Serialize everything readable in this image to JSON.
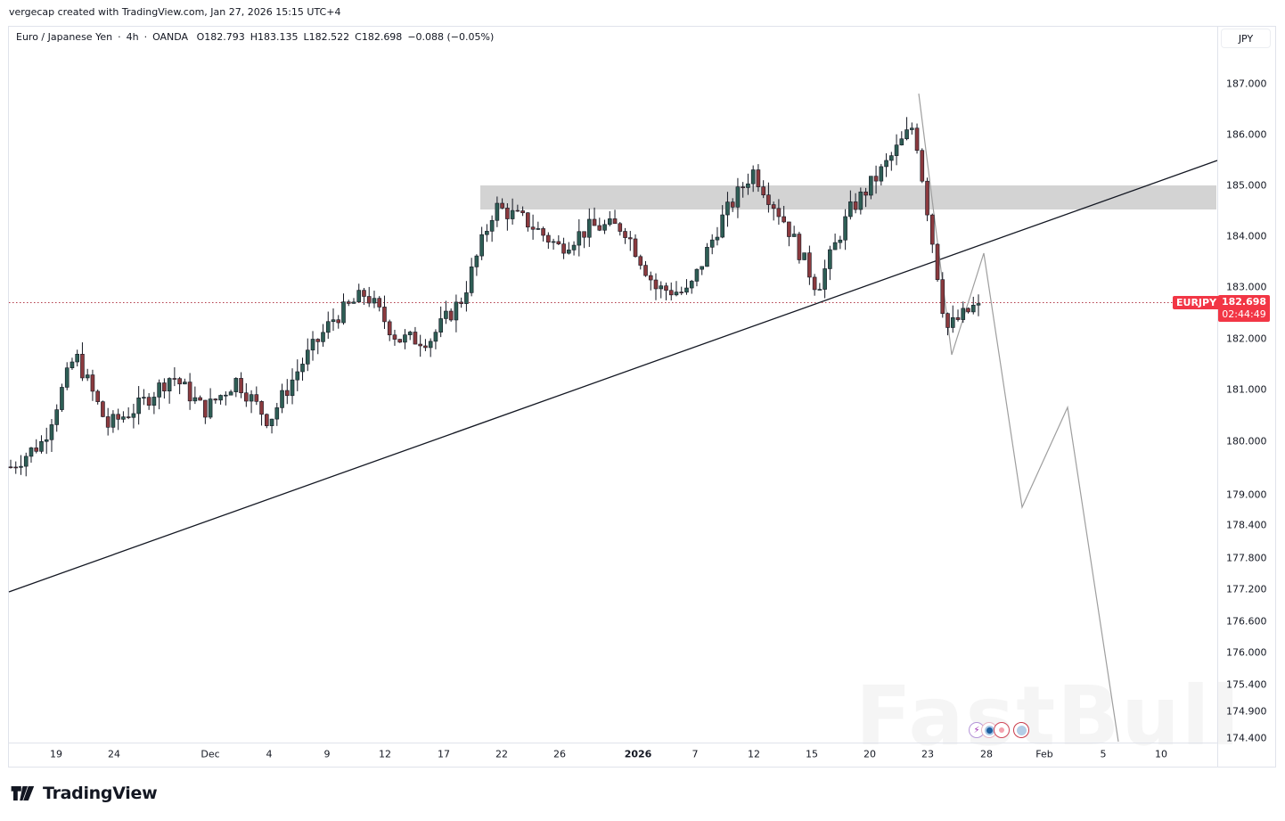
{
  "credit": "vergecap created with TradingView.com, Jan 27, 2026 15:15 UTC+4",
  "legend": {
    "symbol_name": "Euro / Japanese Yen",
    "interval": "4h",
    "exchange": "OANDA",
    "separator": "·",
    "open": "O182.793",
    "high": "H183.135",
    "low": "L182.522",
    "close": "C182.698",
    "change": "−0.088 (−0.05%)"
  },
  "price_axis": {
    "currency": "JPY",
    "ticks": [
      "187.000",
      "186.000",
      "185.000",
      "184.000",
      "183.000",
      "182.000",
      "181.000",
      "180.000",
      "179.000",
      "178.400",
      "177.800",
      "177.200",
      "176.600",
      "176.000",
      "175.400",
      "174.900",
      "174.400"
    ]
  },
  "last_price": {
    "symbol": "EURJPY",
    "price": "182.698",
    "countdown": "02:44:49",
    "color": "#f23645"
  },
  "time_axis": {
    "labels": [
      "19",
      "24",
      "Dec",
      "4",
      "9",
      "12",
      "17",
      "22",
      "26",
      "2026",
      "7",
      "12",
      "15",
      "20",
      "23",
      "28",
      "Feb",
      "5",
      "10"
    ]
  },
  "events": [
    "lightning-event-icon",
    "flag-event-icon",
    "jp-flag-event-icon",
    "eu-flag-event-icon"
  ],
  "branding": {
    "logo_text": "TradingView",
    "watermark": "FastBull"
  },
  "colors": {
    "up": "#2e5e55",
    "down": "#8b3a3e",
    "zone": "#d3d3d3",
    "trendline": "#131722",
    "projection": "#9e9e9e"
  },
  "chart_data": {
    "type": "candlestick",
    "title": "Euro / Japanese Yen · 4h · OANDA",
    "xlabel": "",
    "ylabel": "JPY",
    "ylim": [
      174.4,
      187.3
    ],
    "x_ticks": [
      "19",
      "24",
      "Dec",
      "4",
      "9",
      "12",
      "17",
      "22",
      "26",
      "2026",
      "7",
      "12",
      "15",
      "20",
      "23",
      "28",
      "Feb",
      "5",
      "10"
    ],
    "y_ticks": [
      187.0,
      186.0,
      185.0,
      184.0,
      183.0,
      182.0,
      181.0,
      180.0,
      179.0,
      178.4,
      177.8,
      177.2,
      176.6,
      176.0,
      175.4,
      174.9,
      174.4
    ],
    "grid": false,
    "last": {
      "open": 182.793,
      "high": 183.135,
      "low": 182.522,
      "close": 182.698,
      "change": -0.088,
      "change_pct": -0.05
    },
    "price_path_approx": [
      {
        "date": "Nov 17",
        "close": 179.5
      },
      {
        "date": "Nov 19",
        "close": 180.0
      },
      {
        "date": "Nov 21",
        "close": 181.7
      },
      {
        "date": "Nov 24",
        "close": 180.3
      },
      {
        "date": "Nov 26",
        "close": 180.7
      },
      {
        "date": "Nov 28",
        "close": 181.3
      },
      {
        "date": "Dec 1",
        "close": 180.6
      },
      {
        "date": "Dec 3",
        "close": 181.2
      },
      {
        "date": "Dec 5",
        "close": 180.4
      },
      {
        "date": "Dec 9",
        "close": 181.5
      },
      {
        "date": "Dec 10",
        "close": 182.4
      },
      {
        "date": "Dec 12",
        "close": 182.9
      },
      {
        "date": "Dec 15",
        "close": 182.0
      },
      {
        "date": "Dec 17",
        "close": 182.0
      },
      {
        "date": "Dec 19",
        "close": 182.8
      },
      {
        "date": "Dec 22",
        "close": 184.6
      },
      {
        "date": "Dec 24",
        "close": 184.3
      },
      {
        "date": "Dec 26",
        "close": 183.8
      },
      {
        "date": "Dec 29",
        "close": 184.2
      },
      {
        "date": "Jan 2",
        "close": 184.2
      },
      {
        "date": "Jan 7",
        "close": 183.0
      },
      {
        "date": "Jan 9",
        "close": 182.9
      },
      {
        "date": "Jan 12",
        "close": 184.3
      },
      {
        "date": "Jan 13",
        "close": 185.3
      },
      {
        "date": "Jan 15",
        "close": 184.3
      },
      {
        "date": "Jan 19",
        "close": 183.0
      },
      {
        "date": "Jan 20",
        "close": 184.5
      },
      {
        "date": "Jan 21",
        "close": 185.3
      },
      {
        "date": "Jan 23",
        "close": 186.2
      },
      {
        "date": "Jan 26",
        "close": 182.2
      },
      {
        "date": "Jan 27",
        "close": 182.698
      }
    ],
    "annotations": [
      {
        "type": "rectangle",
        "label": "resistance zone",
        "price_top": 185.0,
        "price_bottom": 184.5
      },
      {
        "type": "trendline",
        "label": "ascending support",
        "from": {
          "x": "Nov 17",
          "price": 177.0
        },
        "to": {
          "x": "Feb 12",
          "price": 185.5
        }
      },
      {
        "type": "projection_path",
        "points": [
          186.8,
          181.7,
          183.7,
          178.7,
          180.6,
          174.4
        ]
      }
    ]
  }
}
